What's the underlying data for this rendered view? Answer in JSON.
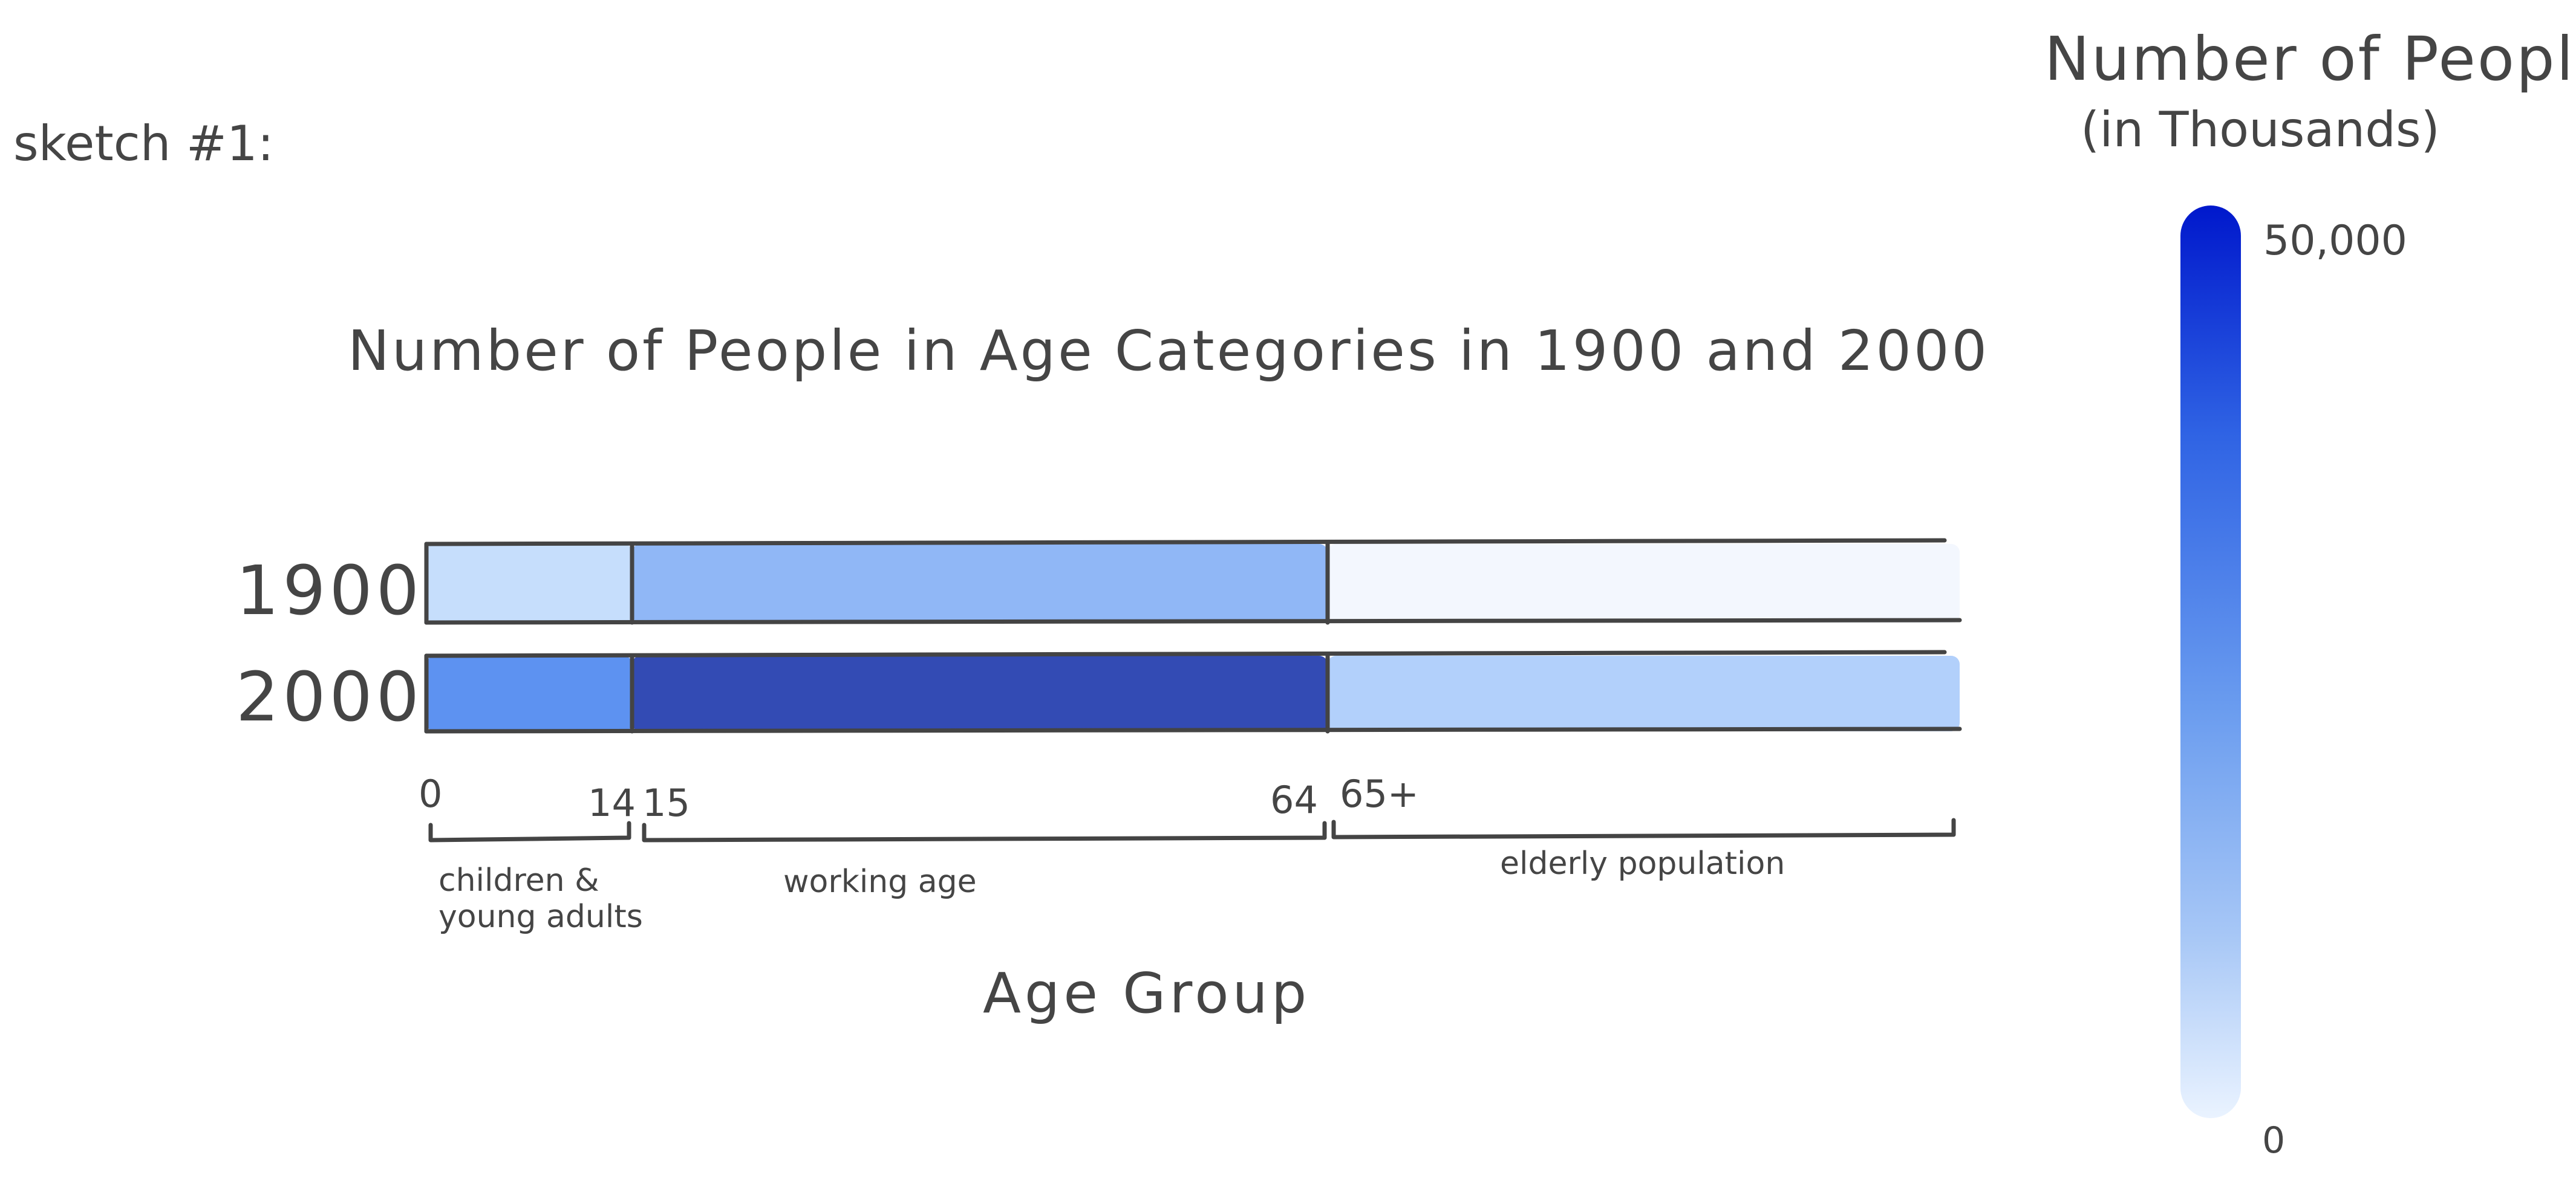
{
  "sketch_label": "sketch #1:",
  "chart_data": {
    "type": "heatmap",
    "title": "Number of People in Age Categories in 1900 and 2000",
    "xlabel": "Age Group",
    "rows": [
      "1900",
      "2000"
    ],
    "age_ticks": [
      "0",
      "14",
      "15",
      "64",
      "65+"
    ],
    "groups": [
      {
        "name": "children & young adults",
        "range": [
          0,
          14
        ]
      },
      {
        "name": "working age",
        "range": [
          15,
          64
        ]
      },
      {
        "name": "elderly population",
        "range": [
          65,
          null
        ]
      }
    ],
    "cells": [
      {
        "row": "1900",
        "group": "children & young adults",
        "level": 0.25,
        "color": "#c3dcfc"
      },
      {
        "row": "1900",
        "group": "working age",
        "level": 0.45,
        "color": "#8ab3f5"
      },
      {
        "row": "1900",
        "group": "elderly population",
        "level": 0.03,
        "color": "#f2f7fe"
      },
      {
        "row": "2000",
        "group": "children & young adults",
        "level": 0.6,
        "color": "#548cf0"
      },
      {
        "row": "2000",
        "group": "working age",
        "level": 0.92,
        "color": "#2841b0"
      },
      {
        "row": "2000",
        "group": "elderly population",
        "level": 0.3,
        "color": "#aecdfb"
      }
    ],
    "legend": {
      "title": "Number of People",
      "subtitle": "(in Thousands)",
      "max_label": "50,000",
      "min_label": "0",
      "range": [
        0,
        50000
      ],
      "color_high": "#0018cc",
      "color_low": "#eaf3ff"
    }
  }
}
